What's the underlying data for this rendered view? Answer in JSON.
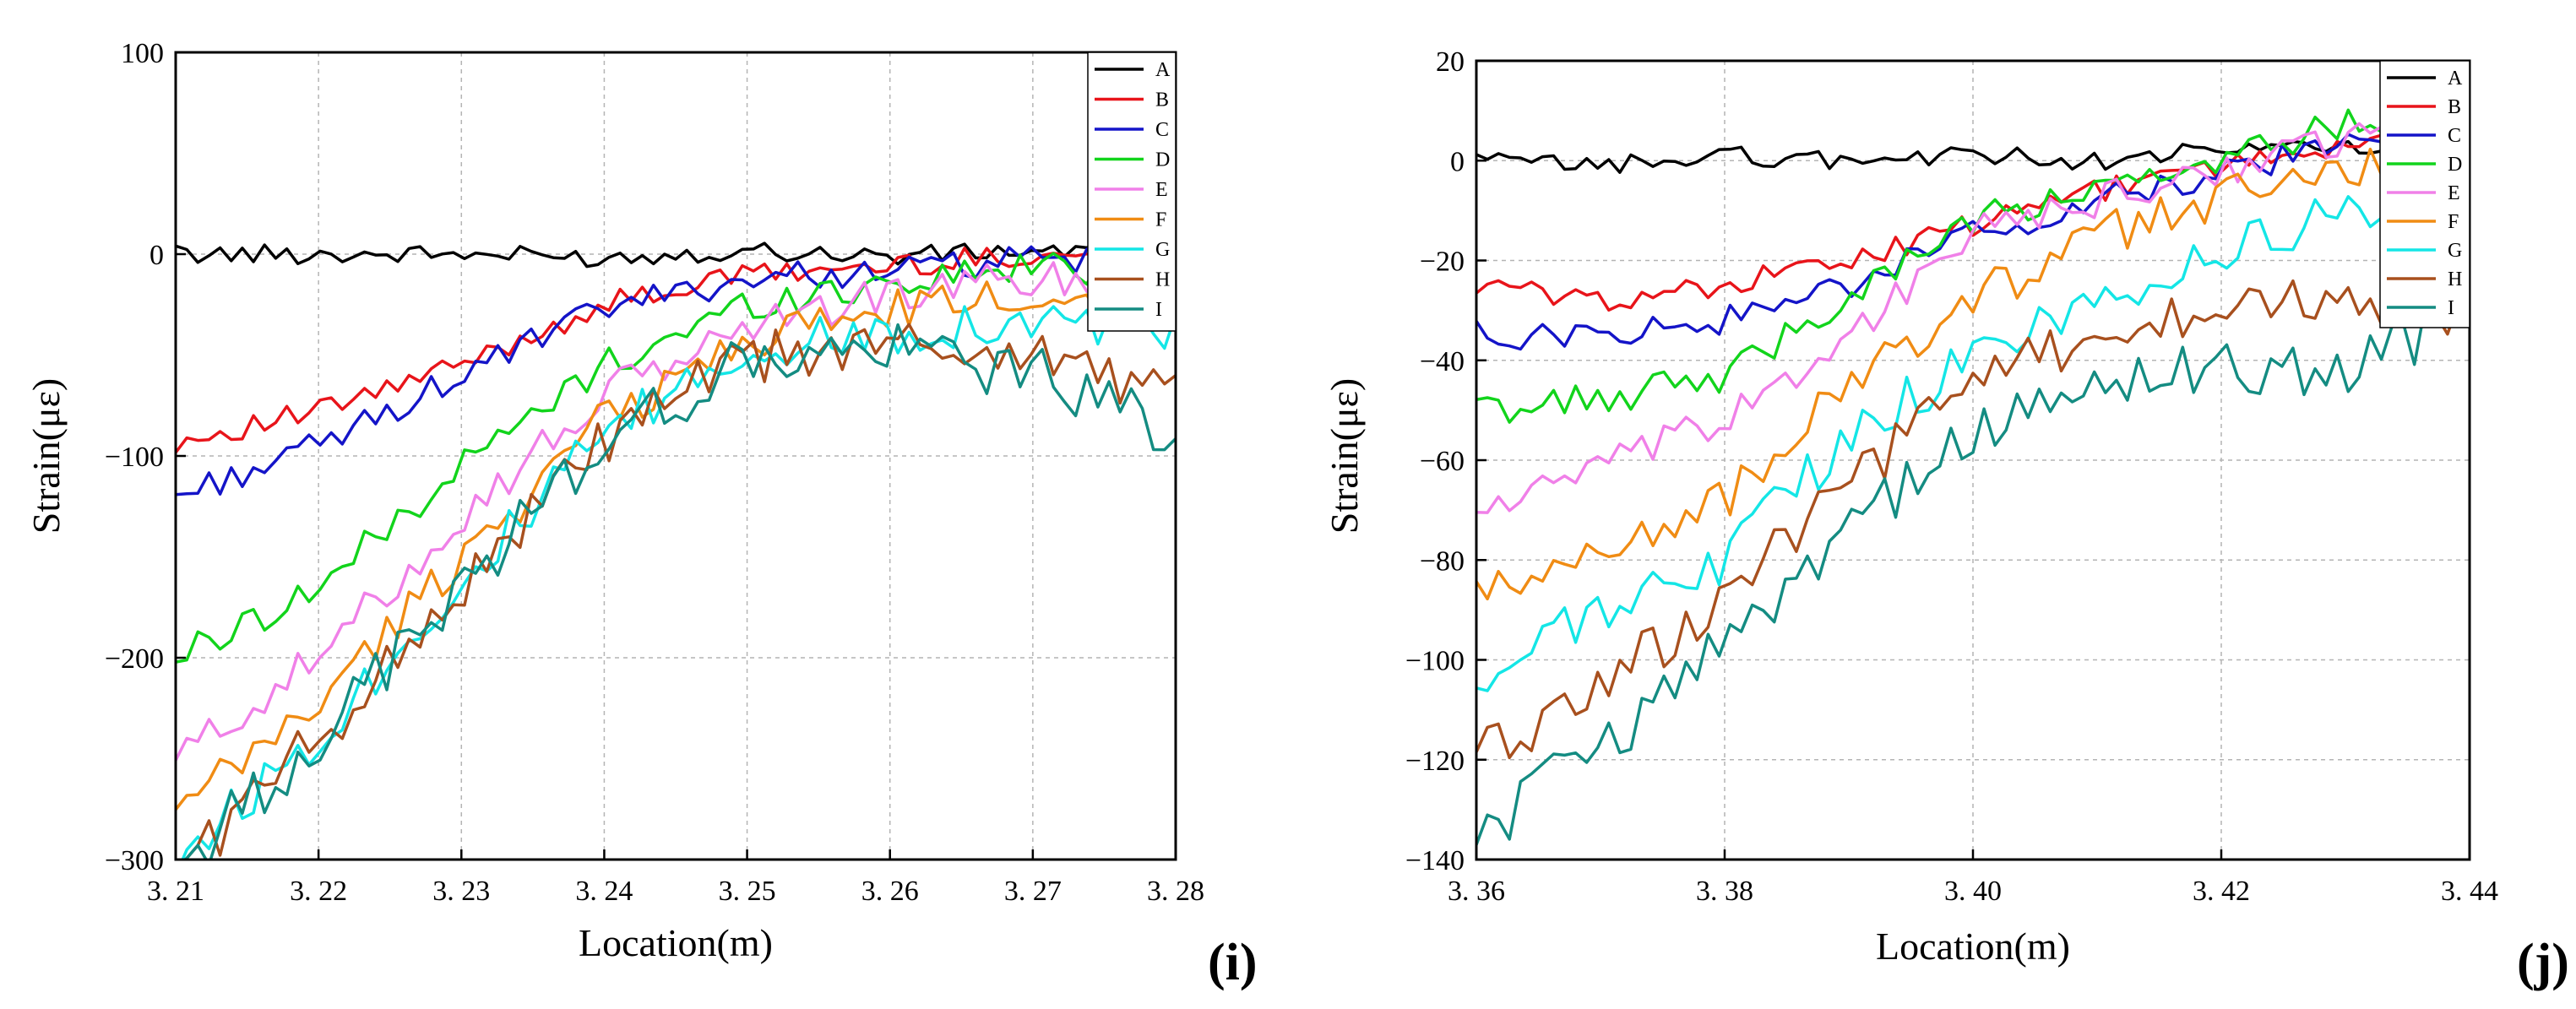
{
  "chart_data": [
    {
      "type": "line",
      "panel_label": "(i)",
      "xlabel": "Location(m)",
      "ylabel": "Strain(με)",
      "xlim": [
        3.21,
        3.28
      ],
      "ylim": [
        -300,
        100
      ],
      "xticks": [
        3.21,
        3.22,
        3.23,
        3.24,
        3.25,
        3.26,
        3.27,
        3.28
      ],
      "xtick_labels": [
        "3. 21",
        "3. 22",
        "3. 23",
        "3. 24",
        "3. 25",
        "3. 26",
        "3. 27",
        "3. 28"
      ],
      "yticks": [
        100,
        0,
        -100,
        -200,
        -300
      ],
      "ytick_labels": [
        "100",
        "0",
        "−100",
        "−200",
        "−300"
      ],
      "grid": true,
      "legend_position": "top-right",
      "series": [
        {
          "name": "A",
          "color": "#000000",
          "x": [
            3.21,
            3.22,
            3.23,
            3.24,
            3.25,
            3.26,
            3.27,
            3.28
          ],
          "y": [
            0,
            0,
            0,
            -2,
            2,
            -1,
            2,
            0
          ]
        },
        {
          "name": "B",
          "color": "#e8141a",
          "x": [
            3.21,
            3.22,
            3.23,
            3.24,
            3.25,
            3.26,
            3.27,
            3.28
          ],
          "y": [
            -93,
            -78,
            -55,
            -25,
            -10,
            -6,
            0,
            -2
          ]
        },
        {
          "name": "C",
          "color": "#1414c8",
          "x": [
            3.21,
            3.22,
            3.23,
            3.24,
            3.25,
            3.26,
            3.27,
            3.28
          ],
          "y": [
            -120,
            -95,
            -60,
            -27,
            -12,
            -8,
            -3,
            -4
          ]
        },
        {
          "name": "D",
          "color": "#12d41c",
          "x": [
            3.21,
            3.22,
            3.23,
            3.24,
            3.25,
            3.26,
            3.27,
            3.28
          ],
          "y": [
            -200,
            -165,
            -105,
            -55,
            -25,
            -14,
            -6,
            -8
          ]
        },
        {
          "name": "E",
          "color": "#f080e8",
          "x": [
            3.21,
            3.22,
            3.23,
            3.24,
            3.25,
            3.26,
            3.27,
            3.28
          ],
          "y": [
            -250,
            -200,
            -130,
            -70,
            -35,
            -20,
            -12,
            -14
          ]
        },
        {
          "name": "F",
          "color": "#f08c14",
          "x": [
            3.21,
            3.22,
            3.23,
            3.24,
            3.25,
            3.26,
            3.27,
            3.28
          ],
          "y": [
            -278,
            -222,
            -150,
            -82,
            -42,
            -28,
            -20,
            -23
          ]
        },
        {
          "name": "G",
          "color": "#14e6e6",
          "x": [
            3.21,
            3.22,
            3.23,
            3.24,
            3.25,
            3.26,
            3.27,
            3.28
          ],
          "y": [
            -300,
            -238,
            -162,
            -90,
            -48,
            -38,
            -32,
            -38
          ]
        },
        {
          "name": "H",
          "color": "#a8501e",
          "x": [
            3.21,
            3.22,
            3.23,
            3.24,
            3.25,
            3.26,
            3.27,
            3.28
          ],
          "y": [
            -305,
            -240,
            -165,
            -92,
            -52,
            -45,
            -48,
            -70
          ]
        },
        {
          "name": "I",
          "color": "#148c82",
          "x": [
            3.21,
            3.22,
            3.23,
            3.24,
            3.25,
            3.26,
            3.27,
            3.28
          ],
          "y": [
            -305,
            -240,
            -165,
            -92,
            -53,
            -48,
            -58,
            -90
          ]
        }
      ]
    },
    {
      "type": "line",
      "panel_label": "(j)",
      "xlabel": "Location(m)",
      "ylabel": "Strain(με)",
      "xlim": [
        3.36,
        3.44
      ],
      "ylim": [
        -140,
        20
      ],
      "xticks": [
        3.36,
        3.38,
        3.4,
        3.42,
        3.44
      ],
      "xtick_labels": [
        "3. 36",
        "3. 38",
        "3. 40",
        "3. 42",
        "3. 44"
      ],
      "yticks": [
        20,
        0,
        -20,
        -40,
        -60,
        -80,
        -100,
        -120,
        -140
      ],
      "ytick_labels": [
        "20",
        "0",
        "−20",
        "−40",
        "−60",
        "−80",
        "−100",
        "−120",
        "−140"
      ],
      "grid": true,
      "legend_position": "top-right",
      "series": [
        {
          "name": "A",
          "color": "#000000",
          "x": [
            3.36,
            3.37,
            3.38,
            3.39,
            3.4,
            3.41,
            3.42,
            3.43,
            3.44
          ],
          "y": [
            0,
            -1,
            1,
            0,
            1,
            0,
            2,
            3,
            0
          ]
        },
        {
          "name": "B",
          "color": "#e8141a",
          "x": [
            3.36,
            3.37,
            3.38,
            3.39,
            3.4,
            3.41,
            3.42,
            3.43,
            3.44
          ],
          "y": [
            -25,
            -28,
            -25,
            -20,
            -13,
            -6,
            -1,
            3,
            2
          ]
        },
        {
          "name": "C",
          "color": "#1414c8",
          "x": [
            3.36,
            3.37,
            3.38,
            3.39,
            3.4,
            3.41,
            3.42,
            3.43,
            3.44
          ],
          "y": [
            -35,
            -35,
            -32,
            -25,
            -15,
            -8,
            -3,
            4,
            3
          ]
        },
        {
          "name": "D",
          "color": "#12d41c",
          "x": [
            3.36,
            3.37,
            3.38,
            3.39,
            3.4,
            3.41,
            3.42,
            3.43,
            3.44
          ],
          "y": [
            -50,
            -48,
            -43,
            -27,
            -12,
            -6,
            -1,
            8,
            5
          ]
        },
        {
          "name": "E",
          "color": "#f080e8",
          "x": [
            3.36,
            3.37,
            3.38,
            3.39,
            3.4,
            3.41,
            3.42,
            3.43,
            3.44
          ],
          "y": [
            -70,
            -62,
            -52,
            -35,
            -15,
            -8,
            -2,
            5,
            3
          ]
        },
        {
          "name": "F",
          "color": "#f08c14",
          "x": [
            3.36,
            3.37,
            3.38,
            3.39,
            3.4,
            3.41,
            3.42,
            3.43,
            3.44
          ],
          "y": [
            -88,
            -78,
            -68,
            -45,
            -28,
            -15,
            -8,
            0,
            -5
          ]
        },
        {
          "name": "G",
          "color": "#14e6e6",
          "x": [
            3.36,
            3.37,
            3.38,
            3.39,
            3.4,
            3.41,
            3.42,
            3.43,
            3.44
          ],
          "y": [
            -105,
            -90,
            -80,
            -55,
            -40,
            -28,
            -18,
            -10,
            -20
          ]
        },
        {
          "name": "H",
          "color": "#a8501e",
          "x": [
            3.36,
            3.37,
            3.38,
            3.39,
            3.4,
            3.41,
            3.42,
            3.43,
            3.44
          ],
          "y": [
            -120,
            -105,
            -88,
            -65,
            -45,
            -35,
            -30,
            -28,
            -33
          ]
        },
        {
          "name": "I",
          "color": "#148c82",
          "x": [
            3.36,
            3.37,
            3.38,
            3.39,
            3.4,
            3.41,
            3.42,
            3.43,
            3.44
          ],
          "y": [
            -135,
            -118,
            -95,
            -75,
            -55,
            -45,
            -42,
            -42,
            -30
          ]
        }
      ]
    }
  ]
}
